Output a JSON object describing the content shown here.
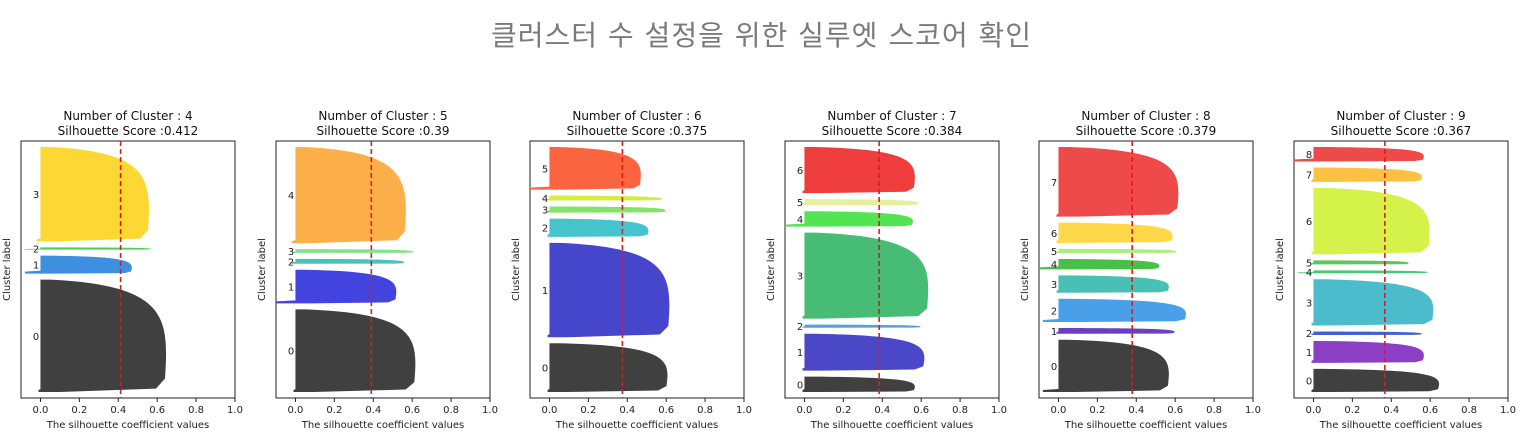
{
  "main_title": "클러스터 수 설정을 위한 실루엣 스코어 확인",
  "chart_data": [
    {
      "type": "silhouette",
      "title_line1": "Number of Cluster : 4",
      "title_line2": "Silhouette Score :0.412",
      "score": 0.412,
      "xlabel": "The silhouette coefficient values",
      "ylabel": "Cluster label",
      "xlim": [
        -0.1,
        1.0
      ],
      "xticks": [
        "0.0",
        "0.2",
        "0.4",
        "0.6",
        "0.8",
        "1.0"
      ],
      "clusters": [
        {
          "label": "0",
          "size": 1.0,
          "max": 0.66,
          "min": -0.01,
          "color": "#404040"
        },
        {
          "label": "1",
          "size": 0.16,
          "max": 0.48,
          "min": -0.08,
          "color": "#3f8fe0"
        },
        {
          "label": "2",
          "size": 0.02,
          "max": 0.58,
          "min": -0.08,
          "color": "#4fcf5a"
        },
        {
          "label": "3",
          "size": 0.84,
          "max": 0.57,
          "min": -0.02,
          "color": "#fdd835"
        }
      ]
    },
    {
      "type": "silhouette",
      "title_line1": "Number of Cluster : 5",
      "title_line2": "Silhouette Score :0.39",
      "score": 0.39,
      "xlabel": "The silhouette coefficient values",
      "ylabel": "Cluster label",
      "xlim": [
        -0.1,
        1.0
      ],
      "xticks": [
        "0.0",
        "0.2",
        "0.4",
        "0.6",
        "0.8",
        "1.0"
      ],
      "clusters": [
        {
          "label": "0",
          "size": 0.86,
          "max": 0.63,
          "min": -0.01,
          "color": "#404040"
        },
        {
          "label": "1",
          "size": 0.35,
          "max": 0.53,
          "min": -0.1,
          "color": "#4343e0"
        },
        {
          "label": "2",
          "size": 0.05,
          "max": 0.57,
          "min": -0.02,
          "color": "#45c4bb"
        },
        {
          "label": "3",
          "size": 0.04,
          "max": 0.62,
          "min": -0.02,
          "color": "#83e38a"
        },
        {
          "label": "4",
          "size": 1.0,
          "max": 0.58,
          "min": -0.02,
          "color": "#fdb049"
        }
      ]
    },
    {
      "type": "silhouette",
      "title_line1": "Number of Cluster : 6",
      "title_line2": "Silhouette Score :0.375",
      "score": 0.375,
      "xlabel": "The silhouette coefficient values",
      "ylabel": "Cluster label",
      "xlim": [
        -0.1,
        1.0
      ],
      "xticks": [
        "0.0",
        "0.2",
        "0.4",
        "0.6",
        "0.8",
        "1.0"
      ],
      "clusters": [
        {
          "label": "0",
          "size": 0.8,
          "max": 0.62,
          "min": -0.01,
          "color": "#404040"
        },
        {
          "label": "1",
          "size": 1.55,
          "max": 0.63,
          "min": -0.01,
          "color": "#4646cc"
        },
        {
          "label": "2",
          "size": 0.3,
          "max": 0.52,
          "min": -0.01,
          "color": "#45c4cc"
        },
        {
          "label": "3",
          "size": 0.1,
          "max": 0.61,
          "min": -0.01,
          "color": "#85e36a"
        },
        {
          "label": "4",
          "size": 0.08,
          "max": 0.59,
          "min": -0.01,
          "color": "#d4ee3f"
        },
        {
          "label": "5",
          "size": 0.7,
          "max": 0.48,
          "min": -0.1,
          "color": "#fa6540"
        }
      ]
    },
    {
      "type": "silhouette",
      "title_line1": "Number of Cluster : 7",
      "title_line2": "Silhouette Score :0.384",
      "score": 0.384,
      "xlabel": "The silhouette coefficient values",
      "ylabel": "Cluster label",
      "xlim": [
        -0.1,
        1.0
      ],
      "xticks": [
        "0.0",
        "0.2",
        "0.4",
        "0.6",
        "0.8",
        "1.0"
      ],
      "clusters": [
        {
          "label": "0",
          "size": 0.25,
          "max": 0.58,
          "min": -0.01,
          "color": "#404040"
        },
        {
          "label": "1",
          "size": 0.6,
          "max": 0.63,
          "min": -0.01,
          "color": "#4b48c8"
        },
        {
          "label": "2",
          "size": 0.05,
          "max": 0.61,
          "min": -0.01,
          "color": "#4fa4e0"
        },
        {
          "label": "3",
          "size": 1.4,
          "max": 0.65,
          "min": -0.01,
          "color": "#47bc74"
        },
        {
          "label": "4",
          "size": 0.25,
          "max": 0.57,
          "min": -0.1,
          "color": "#53e353"
        },
        {
          "label": "5",
          "size": 0.1,
          "max": 0.6,
          "min": -0.01,
          "color": "#e4f0a0"
        },
        {
          "label": "6",
          "size": 0.75,
          "max": 0.58,
          "min": -0.01,
          "color": "#ef3c3c"
        }
      ]
    },
    {
      "type": "silhouette",
      "title_line1": "Number of Cluster : 8",
      "title_line2": "Silhouette Score :0.379",
      "score": 0.379,
      "xlabel": "The silhouette coefficient values",
      "ylabel": "Cluster label",
      "xlim": [
        -0.1,
        1.0
      ],
      "xticks": [
        "0.0",
        "0.2",
        "0.4",
        "0.6",
        "0.8",
        "1.0"
      ],
      "clusters": [
        {
          "label": "0",
          "size": 0.9,
          "max": 0.58,
          "min": -0.08,
          "color": "#404040"
        },
        {
          "label": "1",
          "size": 0.1,
          "max": 0.61,
          "min": -0.01,
          "color": "#6b40c0"
        },
        {
          "label": "2",
          "size": 0.4,
          "max": 0.67,
          "min": -0.08,
          "color": "#4aa0e8"
        },
        {
          "label": "3",
          "size": 0.3,
          "max": 0.58,
          "min": -0.01,
          "color": "#48c0b4"
        },
        {
          "label": "4",
          "size": 0.18,
          "max": 0.53,
          "min": -0.1,
          "color": "#48c048"
        },
        {
          "label": "5",
          "size": 0.07,
          "max": 0.62,
          "min": -0.01,
          "color": "#a8f07c"
        },
        {
          "label": "6",
          "size": 0.35,
          "max": 0.6,
          "min": -0.01,
          "color": "#fdd94a"
        },
        {
          "label": "7",
          "size": 1.2,
          "max": 0.63,
          "min": -0.01,
          "color": "#ee4a4a"
        }
      ]
    },
    {
      "type": "silhouette",
      "title_line1": "Number of Cluster : 9",
      "title_line2": "Silhouette Score :0.367",
      "score": 0.367,
      "xlabel": "The silhouette coefficient values",
      "ylabel": "Cluster label",
      "xlim": [
        -0.1,
        1.0
      ],
      "xticks": [
        "0.0",
        "0.2",
        "0.4",
        "0.6",
        "0.8",
        "1.0"
      ],
      "clusters": [
        {
          "label": "0",
          "size": 0.4,
          "max": 0.66,
          "min": -0.01,
          "color": "#404040"
        },
        {
          "label": "1",
          "size": 0.38,
          "max": 0.58,
          "min": -0.01,
          "color": "#8a3fc4"
        },
        {
          "label": "2",
          "size": 0.06,
          "max": 0.57,
          "min": -0.01,
          "color": "#3f5fd4"
        },
        {
          "label": "3",
          "size": 0.8,
          "max": 0.63,
          "min": -0.01,
          "color": "#4cbccc"
        },
        {
          "label": "4",
          "size": 0.05,
          "max": 0.6,
          "min": -0.08,
          "color": "#48c878"
        },
        {
          "label": "5",
          "size": 0.07,
          "max": 0.5,
          "min": -0.01,
          "color": "#5ac85a"
        },
        {
          "label": "6",
          "size": 1.15,
          "max": 0.61,
          "min": -0.01,
          "color": "#d4f24a"
        },
        {
          "label": "7",
          "size": 0.25,
          "max": 0.57,
          "min": -0.01,
          "color": "#fdc040"
        },
        {
          "label": "8",
          "size": 0.25,
          "max": 0.58,
          "min": -0.1,
          "color": "#ee4a4a"
        }
      ]
    }
  ]
}
